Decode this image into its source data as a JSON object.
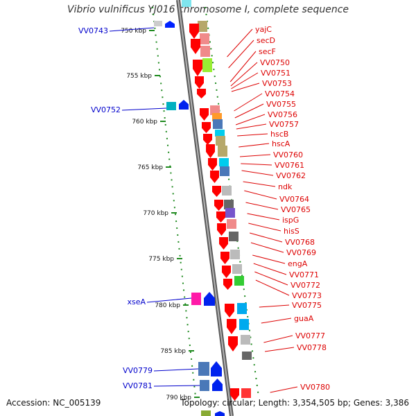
{
  "header": {
    "title": "Vibrio vulnificus YJ016 chromosome I, complete sequence"
  },
  "footer": {
    "accession": "Accession: NC_005139",
    "summary": "Topology: circular; Length: 3,354,505 bp; Genes: 3,386"
  },
  "colors": {
    "backbone": "#8a8a8a",
    "tick": "#1f8a1f",
    "right_label": "#dd0000",
    "left_label": "#0000cc",
    "arrow_red": "#ff0000",
    "arrow_blue": "#0022ff"
  },
  "scale_labels": [
    "750 kbp",
    "755 kbp",
    "760 kbp",
    "765 kbp",
    "770 kbp",
    "775 kbp",
    "780 kbp",
    "785 kbp",
    "790 kbp"
  ],
  "left_labels": [
    "VV0743",
    "VV0752",
    "xseA",
    "VV0779",
    "VV0781"
  ],
  "right_labels": [
    "yajC",
    "secD",
    "secF",
    "VV0750",
    "VV0751",
    "VV0753",
    "VV0754",
    "VV0755",
    "VV0756",
    "VV0757",
    "hscB",
    "hscA",
    "VV0760",
    "VV0761",
    "VV0762",
    "ndk",
    "VV0764",
    "VV0765",
    "ispG",
    "hisS",
    "VV0768",
    "VV0769",
    "engA",
    "VV0771",
    "VV0772",
    "VV0773",
    "VV0775",
    "guaA",
    "VV0777",
    "VV0778",
    "VV0780"
  ]
}
